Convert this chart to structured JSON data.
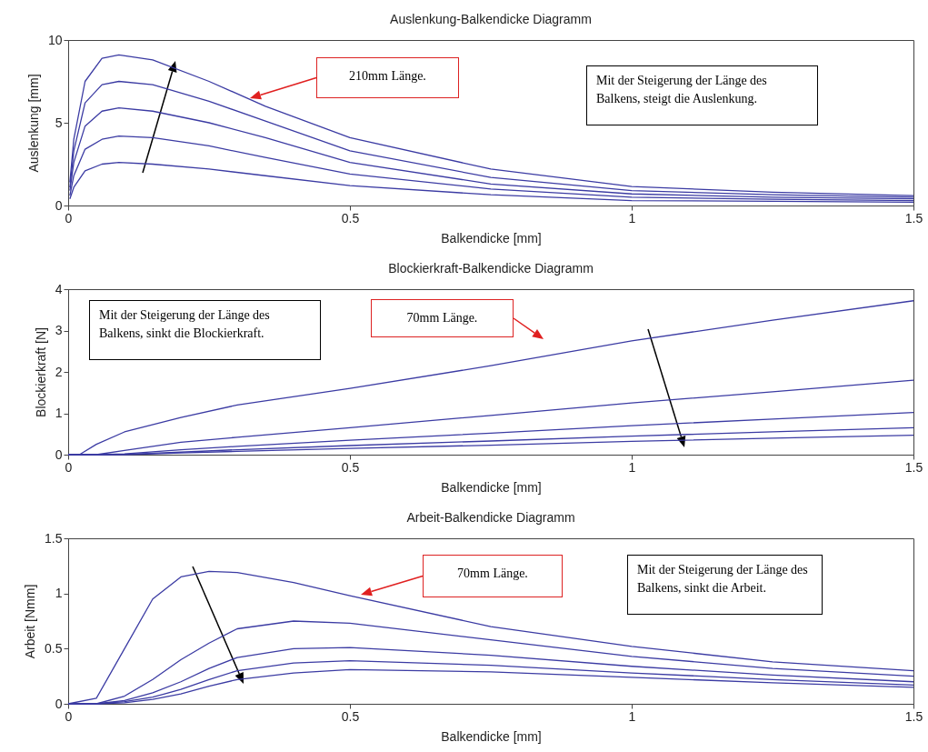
{
  "chart_data": [
    {
      "type": "line",
      "title": "Auslenkung-Balkendicke Diagramm",
      "xlabel": "Balkendicke [mm]",
      "ylabel": "Auslenkung [mm]",
      "x": [
        0.003,
        0.01,
        0.03,
        0.06,
        0.09,
        0.15,
        0.25,
        0.35,
        0.5,
        0.75,
        1.0,
        1.25,
        1.5
      ],
      "series": [
        {
          "color": "#3b3ba3",
          "values": [
            1.4,
            4.0,
            7.5,
            8.9,
            9.1,
            8.8,
            7.5,
            6.0,
            4.1,
            2.2,
            1.15,
            0.8,
            0.6
          ]
        },
        {
          "color": "#3b3ba3",
          "values": [
            1.1,
            3.3,
            6.2,
            7.3,
            7.5,
            7.3,
            6.3,
            5.1,
            3.3,
            1.7,
            0.9,
            0.65,
            0.5
          ]
        },
        {
          "color": "#3b3ba3",
          "values": [
            0.9,
            2.6,
            4.8,
            5.7,
            5.9,
            5.7,
            5.0,
            4.1,
            2.6,
            1.3,
            0.7,
            0.5,
            0.4
          ]
        },
        {
          "color": "#3b3ba3",
          "values": [
            0.6,
            1.8,
            3.4,
            4.0,
            4.2,
            4.1,
            3.6,
            2.9,
            1.9,
            1.0,
            0.5,
            0.38,
            0.3
          ]
        },
        {
          "color": "#3b3ba3",
          "values": [
            0.4,
            1.1,
            2.1,
            2.5,
            2.6,
            2.5,
            2.2,
            1.8,
            1.2,
            0.65,
            0.3,
            0.25,
            0.2
          ]
        }
      ],
      "xlim": [
        0,
        1.5
      ],
      "xticks": [
        0,
        0.5,
        1,
        1.5
      ],
      "ylim": [
        0,
        10
      ],
      "yticks": [
        0,
        5,
        10
      ],
      "grid": false,
      "annotations": [
        "210mm Länge.",
        "Mit der Steigerung der Länge des Balkens, steigt die Auslenkung."
      ]
    },
    {
      "type": "line",
      "title": "Blockierkraft-Balkendicke Diagramm",
      "xlabel": "Balkendicke [mm]",
      "ylabel": "Blockierkraft [N]",
      "x": [
        0,
        0.02,
        0.05,
        0.1,
        0.2,
        0.3,
        0.5,
        0.75,
        1.0,
        1.25,
        1.5
      ],
      "series": [
        {
          "color": "#3b3ba3",
          "values": [
            0,
            0,
            0.25,
            0.55,
            0.9,
            1.2,
            1.6,
            2.15,
            2.75,
            3.25,
            3.72
          ]
        },
        {
          "color": "#3b3ba3",
          "values": [
            0,
            0,
            0,
            0.1,
            0.3,
            0.42,
            0.65,
            0.95,
            1.25,
            1.52,
            1.8
          ]
        },
        {
          "color": "#3b3ba3",
          "values": [
            0,
            0,
            0,
            0.02,
            0.12,
            0.2,
            0.35,
            0.52,
            0.7,
            0.86,
            1.02
          ]
        },
        {
          "color": "#3b3ba3",
          "values": [
            0,
            0,
            0,
            0.01,
            0.06,
            0.12,
            0.22,
            0.33,
            0.45,
            0.55,
            0.65
          ]
        },
        {
          "color": "#3b3ba3",
          "values": [
            0,
            0,
            0,
            0,
            0.04,
            0.08,
            0.15,
            0.23,
            0.32,
            0.4,
            0.47
          ]
        }
      ],
      "xlim": [
        0,
        1.5
      ],
      "xticks": [
        0,
        0.5,
        1,
        1.5
      ],
      "ylim": [
        0,
        4
      ],
      "yticks": [
        0,
        1,
        2,
        3,
        4
      ],
      "grid": false,
      "annotations": [
        "Mit der Steigerung der Länge des Balkens, sinkt die Blockierkraft.",
        "70mm Länge."
      ]
    },
    {
      "type": "line",
      "title": "Arbeit-Balkendicke Diagramm",
      "xlabel": "Balkendicke [mm]",
      "ylabel": "Arbeit [Nmm]",
      "x": [
        0,
        0.05,
        0.1,
        0.15,
        0.2,
        0.25,
        0.3,
        0.4,
        0.5,
        0.75,
        1.0,
        1.25,
        1.5
      ],
      "series": [
        {
          "color": "#3b3ba3",
          "values": [
            0,
            0.05,
            0.5,
            0.95,
            1.15,
            1.2,
            1.19,
            1.1,
            0.98,
            0.7,
            0.52,
            0.38,
            0.3
          ]
        },
        {
          "color": "#3b3ba3",
          "values": [
            0,
            0,
            0.07,
            0.22,
            0.4,
            0.55,
            0.68,
            0.75,
            0.73,
            0.58,
            0.43,
            0.32,
            0.25
          ]
        },
        {
          "color": "#3b3ba3",
          "values": [
            0,
            0,
            0.03,
            0.1,
            0.2,
            0.32,
            0.42,
            0.5,
            0.51,
            0.44,
            0.34,
            0.26,
            0.2
          ]
        },
        {
          "color": "#3b3ba3",
          "values": [
            0,
            0,
            0.02,
            0.06,
            0.13,
            0.22,
            0.3,
            0.37,
            0.39,
            0.35,
            0.28,
            0.22,
            0.17
          ]
        },
        {
          "color": "#3b3ba3",
          "values": [
            0,
            0,
            0.01,
            0.04,
            0.09,
            0.16,
            0.22,
            0.28,
            0.31,
            0.29,
            0.24,
            0.19,
            0.15
          ]
        }
      ],
      "xlim": [
        0,
        1.5
      ],
      "xticks": [
        0,
        0.5,
        1,
        1.5
      ],
      "ylim": [
        0,
        1.5
      ],
      "yticks": [
        0,
        0.5,
        1,
        1.5
      ],
      "grid": false,
      "annotations": [
        "70mm Länge.",
        "Mit der Steigerung der Länge des Balkens, sinkt die Arbeit."
      ]
    }
  ]
}
